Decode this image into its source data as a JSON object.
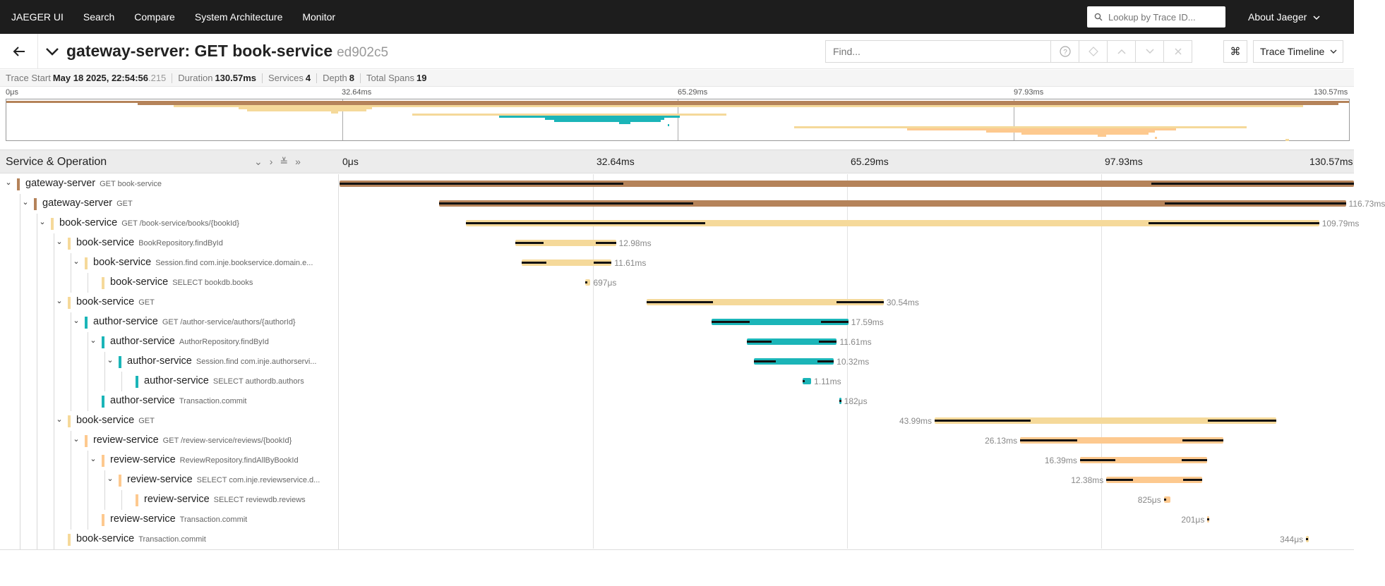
{
  "nav": {
    "brand": "JAEGER UI",
    "items": [
      "Search",
      "Compare",
      "System Architecture",
      "Monitor"
    ],
    "lookup_placeholder": "Lookup by Trace ID...",
    "about": "About Jaeger"
  },
  "trace": {
    "title": "gateway-server: GET book-service",
    "trace_id": "ed902c5",
    "find_placeholder": "Find...",
    "view_mode": "Trace Timeline"
  },
  "summary": {
    "trace_start_label": "Trace Start",
    "trace_start": "May 18 2025, 22:54:56",
    "trace_start_ms": ".215",
    "duration_label": "Duration",
    "duration": "130.57ms",
    "services_label": "Services",
    "services": "4",
    "depth_label": "Depth",
    "depth": "8",
    "total_spans_label": "Total Spans",
    "total_spans": "19"
  },
  "timeline": {
    "header_title": "Service & Operation",
    "ticks": [
      "0μs",
      "32.64ms",
      "65.29ms",
      "97.93ms",
      "130.57ms"
    ],
    "total_ms": 130.57
  },
  "colors": {
    "gateway-server": "#b5835a",
    "book-service": "#f5d99a",
    "author-service": "#1bb5b8",
    "review-service": "#fdc98f"
  },
  "spans": [
    {
      "service": "gateway-server",
      "op": "GET book-service",
      "depth": 0,
      "start": 0,
      "dur": 130.57,
      "label": "",
      "toggle": true
    },
    {
      "service": "gateway-server",
      "op": "GET",
      "depth": 1,
      "start": 12.8,
      "dur": 116.73,
      "label": "116.73ms",
      "toggle": true
    },
    {
      "service": "book-service",
      "op": "GET /book-service/books/{bookId}",
      "depth": 2,
      "start": 16.3,
      "dur": 109.79,
      "label": "109.79ms",
      "toggle": true
    },
    {
      "service": "book-service",
      "op": "BookRepository.findById",
      "depth": 3,
      "start": 22.6,
      "dur": 12.98,
      "label": "12.98ms",
      "toggle": true
    },
    {
      "service": "book-service",
      "op": "Session.find com.inje.bookservice.domain.e...",
      "depth": 4,
      "start": 23.4,
      "dur": 11.61,
      "label": "11.61ms",
      "toggle": true
    },
    {
      "service": "book-service",
      "op": "SELECT bookdb.books",
      "depth": 5,
      "start": 31.6,
      "dur": 0.697,
      "label": "697μs",
      "toggle": false
    },
    {
      "service": "book-service",
      "op": "GET",
      "depth": 3,
      "start": 39.5,
      "dur": 30.54,
      "label": "30.54ms",
      "toggle": true
    },
    {
      "service": "author-service",
      "op": "GET /author-service/authors/{authorId}",
      "depth": 4,
      "start": 47.9,
      "dur": 17.59,
      "label": "17.59ms",
      "toggle": true
    },
    {
      "service": "author-service",
      "op": "AuthorRepository.findById",
      "depth": 5,
      "start": 52.4,
      "dur": 11.61,
      "label": "11.61ms",
      "toggle": true
    },
    {
      "service": "author-service",
      "op": "Session.find com.inje.authorservi...",
      "depth": 6,
      "start": 53.3,
      "dur": 10.32,
      "label": "10.32ms",
      "toggle": true
    },
    {
      "service": "author-service",
      "op": "SELECT authordb.authors",
      "depth": 7,
      "start": 59.6,
      "dur": 1.11,
      "label": "1.11ms",
      "toggle": false
    },
    {
      "service": "author-service",
      "op": "Transaction.commit",
      "depth": 5,
      "start": 64.3,
      "dur": 0.182,
      "label": "182μs",
      "toggle": false
    },
    {
      "service": "book-service",
      "op": "GET",
      "depth": 3,
      "start": 76.6,
      "dur": 43.99,
      "label": "43.99ms",
      "toggle": true
    },
    {
      "service": "review-service",
      "op": "GET /review-service/reviews/{bookId}",
      "depth": 4,
      "start": 87.6,
      "dur": 26.13,
      "label": "26.13ms",
      "toggle": true
    },
    {
      "service": "review-service",
      "op": "ReviewRepository.findAllByBookId",
      "depth": 5,
      "start": 95.3,
      "dur": 16.39,
      "label": "16.39ms",
      "toggle": true
    },
    {
      "service": "review-service",
      "op": "SELECT com.inje.reviewservice.d...",
      "depth": 6,
      "start": 98.7,
      "dur": 12.38,
      "label": "12.38ms",
      "toggle": true
    },
    {
      "service": "review-service",
      "op": "SELECT reviewdb.reviews",
      "depth": 7,
      "start": 106.1,
      "dur": 0.825,
      "label": "825μs",
      "toggle": false
    },
    {
      "service": "review-service",
      "op": "Transaction.commit",
      "depth": 5,
      "start": 111.7,
      "dur": 0.201,
      "label": "201μs",
      "toggle": false
    },
    {
      "service": "book-service",
      "op": "Transaction.commit",
      "depth": 3,
      "start": 124.4,
      "dur": 0.344,
      "label": "344μs",
      "toggle": false
    }
  ]
}
